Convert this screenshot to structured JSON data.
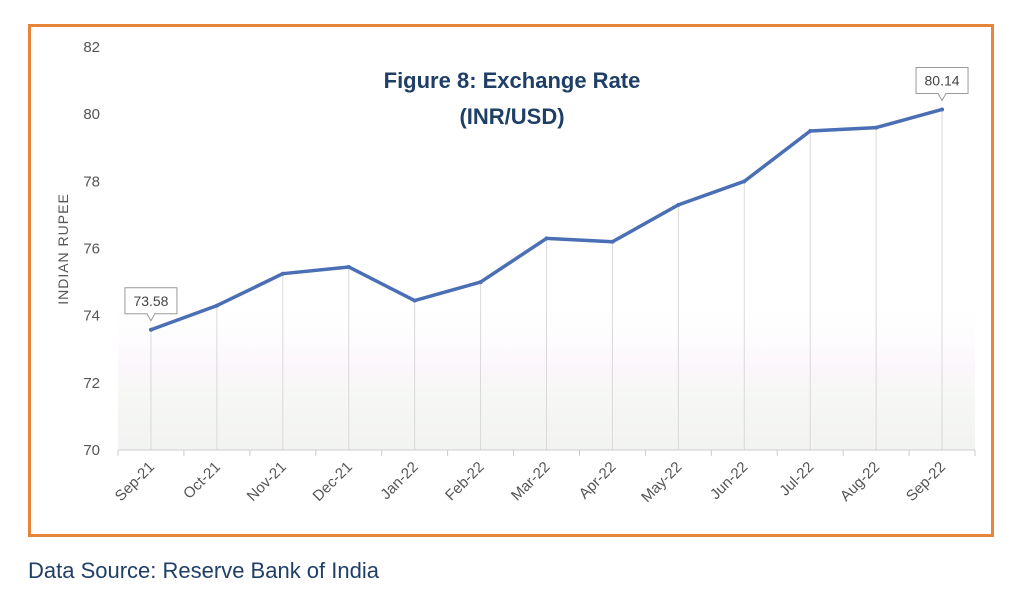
{
  "source_text": "Data Source: Reserve Bank of India",
  "chart_data": {
    "type": "line",
    "title_lines": [
      "Figure 8: Exchange Rate",
      "(INR/USD)"
    ],
    "xlabel": "",
    "ylabel": "INDIAN RUPEE",
    "categories": [
      "Sep-21",
      "Oct-21",
      "Nov-21",
      "Dec-21",
      "Jan-22",
      "Feb-22",
      "Mar-22",
      "Apr-22",
      "May-22",
      "Jun-22",
      "Jul-22",
      "Aug-22",
      "Sep-22"
    ],
    "series": [
      {
        "name": "",
        "values": [
          73.58,
          74.3,
          75.25,
          75.45,
          74.45,
          75.0,
          76.3,
          76.2,
          77.3,
          78.0,
          79.5,
          79.6,
          80.14
        ],
        "color": "#4A6FB5"
      }
    ],
    "ylim": [
      70,
      82
    ],
    "yticks": [
      70,
      72,
      74,
      76,
      78,
      80,
      82
    ],
    "data_labels": [
      {
        "index": 0,
        "text": "73.58"
      },
      {
        "index": 12,
        "text": "80.14"
      }
    ],
    "frame_color": "#E6853A",
    "title_color": "#1F3F66",
    "grid": "vertical"
  }
}
